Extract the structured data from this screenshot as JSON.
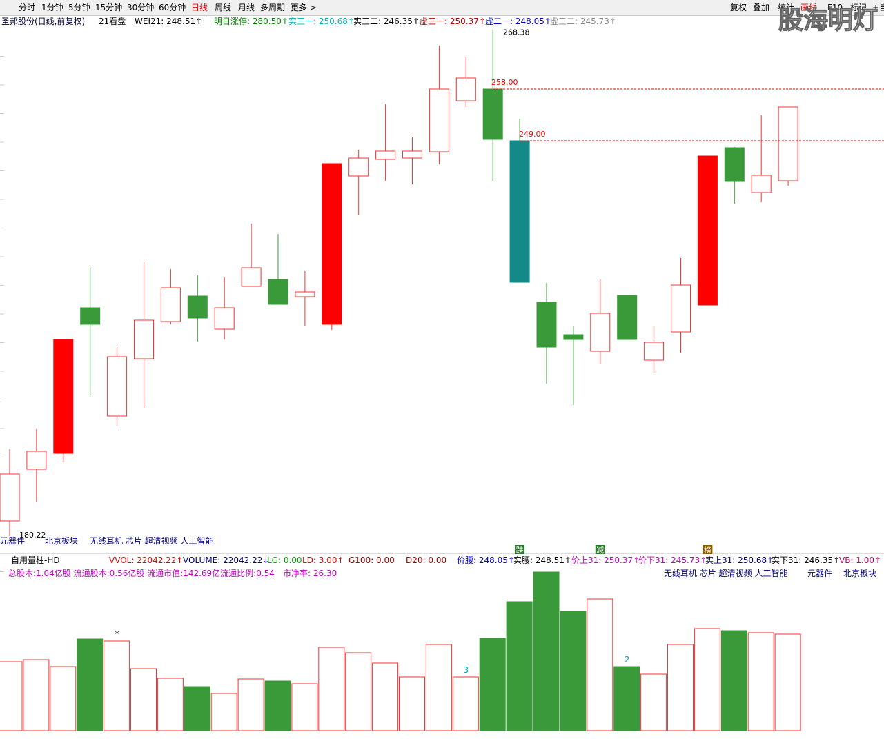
{
  "toolbar": {
    "left": [
      "分时",
      "1分钟",
      "5分钟",
      "15分钟",
      "30分钟",
      "60分钟",
      "日线",
      "周线",
      "月线",
      "多周期",
      "更多 >"
    ],
    "right": [
      "复权",
      "叠加",
      "统计",
      "画线",
      "F10",
      "标记",
      "+自"
    ]
  },
  "header": {
    "stock": "圣邦股份(日线,前复权)",
    "view": "21看盘",
    "indicators": [
      "WEI21: 248.51↑",
      "明日涨停: 280.50↑",
      "实三一: 250.68↑",
      "实三二: 246.35↑",
      "虚三一: 250.37↑",
      "虚二一: 248.05↑",
      "虚三二: 245.73↑"
    ]
  },
  "concept_tags": [
    "元器件",
    "北京板块",
    "无线耳机 芯片 超清视频 人工智能"
  ],
  "indicator_bar": {
    "name": "自用量柱-HD",
    "values": [
      "VVOL: 22042.22↑",
      "VOLUME: 22042.22↓",
      "LG: 0.00",
      "LD: 3.00↑",
      "G100: 0.00",
      "D20: 0.00",
      "价腰: 248.05↑",
      "实腰: 248.51↑",
      "价上31: 250.37↑",
      "价下31: 245.73↑",
      "实上31: 250.68↑",
      "实下31: 246.35↑",
      "VB: 1.00↑"
    ]
  },
  "info": {
    "capital": "总股本:1.04亿股 流通股本:0.56亿股 流通市值:142.69亿流通比例:0.54",
    "pb": "市净率:  26.30",
    "tags": [
      "无线耳机 芯片 超清视频 人工智能",
      "元器件",
      "北京板块"
    ]
  },
  "watermark": "股海明灯",
  "chart_data": {
    "type": "candlestick",
    "open": [
      182.88,
      191.88,
      194.64,
      219.96,
      201.12,
      211.08,
      217.56,
      222.0,
      216.24,
      223.68,
      224.88,
      221.88,
      217.08,
      242.88,
      245.76,
      246.0,
      247.08,
      255.96,
      258.0,
      249.0,
      220.92,
      215.28,
      212.4,
      222.12,
      210.84,
      215.76,
      220.44,
      247.8,
      240.0,
      242.04
    ],
    "high": [
      195.36,
      198.84,
      214.44,
      227.04,
      213.12,
      227.88,
      226.68,
      225.6,
      225.24,
      234.6,
      232.8,
      226.32,
      245.04,
      247.44,
      255.36,
      249.6,
      265.56,
      263.64,
      268.38,
      252.84,
      224.28,
      216.84,
      224.88,
      222.12,
      216.84,
      228.6,
      246.36,
      247.92,
      253.44,
      254.88
    ],
    "low": [
      180.22,
      186.12,
      193.08,
      204.48,
      199.32,
      202.56,
      217.08,
      214.08,
      214.44,
      223.68,
      220.56,
      216.84,
      216.12,
      236.04,
      242.04,
      241.44,
      244.92,
      254.88,
      242.04,
      224.4,
      206.76,
      203.04,
      210.12,
      214.44,
      208.68,
      212.16,
      220.44,
      238.08,
      238.32,
      241.2
    ],
    "close": [
      191.04,
      195.0,
      214.44,
      217.08,
      211.44,
      217.8,
      223.44,
      218.16,
      219.96,
      226.92,
      220.56,
      222.72,
      245.04,
      246.0,
      247.2,
      247.2,
      258.0,
      259.92,
      249.24,
      224.4,
      213.12,
      214.44,
      219.0,
      214.44,
      213.96,
      223.92,
      246.36,
      241.92,
      243.0,
      254.88
    ],
    "body_colors": [
      "#ffffff",
      "#ffffff",
      "#ff0000",
      "#3a9a3a",
      "#ffffff",
      "#ffffff",
      "#ffffff",
      "#3a9a3a",
      "#ffffff",
      "#ffffff",
      "#3a9a3a",
      "#ffffff",
      "#ff0000",
      "#ffffff",
      "#ffffff",
      "#ffffff",
      "#ffffff",
      "#ffffff",
      "#3a9a3a",
      "#138a87",
      "#3a9a3a",
      "#3a9a3a",
      "#ffffff",
      "#3a9a3a",
      "#ffffff",
      "#ffffff",
      "#ff0000",
      "#3a9a3a",
      "#ffffff",
      "#ffffff"
    ],
    "up_color": "#ff3030",
    "down_color": "#3a9a3a",
    "ylim": [
      177.48,
      273.48
    ],
    "price_marks": [
      {
        "value": 268.38,
        "label": "268.38"
      },
      {
        "value": 258.0,
        "label": "258.00",
        "line": true
      },
      {
        "value": 249.0,
        "label": "249.00",
        "line": true
      },
      {
        "value": 180.22,
        "label": "180.22"
      }
    ],
    "event_tags": [
      null,
      null,
      null,
      null,
      null,
      null,
      null,
      null,
      null,
      null,
      null,
      null,
      null,
      null,
      null,
      null,
      null,
      null,
      null,
      "跌",
      null,
      null,
      "减",
      null,
      null,
      null,
      "榜",
      null,
      null,
      null
    ],
    "volume": {
      "values": [
        15745,
        16217,
        14643,
        20941,
        20469,
        14171,
        11966,
        10077,
        8502,
        11809,
        11336,
        10707,
        19051,
        17792,
        15430,
        12281,
        19681,
        12281,
        21098,
        29443,
        36214,
        27239,
        30073,
        14643,
        12911,
        19681,
        23303,
        22830,
        22358,
        22042.22
      ],
      "ylim": [
        0,
        37630
      ],
      "notes": [
        null,
        null,
        null,
        null,
        "*",
        null,
        null,
        null,
        null,
        null,
        null,
        null,
        null,
        null,
        null,
        null,
        null,
        "3",
        null,
        null,
        null,
        null,
        null,
        "2",
        null,
        null,
        null,
        null,
        null,
        null
      ]
    }
  }
}
